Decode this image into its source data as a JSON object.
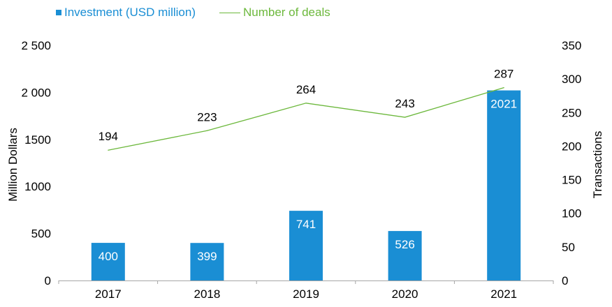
{
  "chart_data": {
    "type": "bar",
    "categories": [
      "2017",
      "2018",
      "2019",
      "2020",
      "2021"
    ],
    "series": [
      {
        "name": "Investment (USD million)",
        "type": "bar",
        "axis": "left",
        "values": [
          400,
          399,
          741,
          526,
          2021
        ],
        "color": "#1a8ed4"
      },
      {
        "name": "Number of deals",
        "type": "line",
        "axis": "right",
        "values": [
          194,
          223,
          264,
          243,
          287
        ],
        "color": "#6cb83c"
      }
    ],
    "ylabel": "Million Dollars",
    "ylabel_right": "Transactions",
    "ylim": [
      0,
      2500
    ],
    "ylim_right": [
      0,
      350
    ],
    "yticks": [
      "0",
      "500",
      "1000",
      "1500",
      "2 000",
      "2 500"
    ],
    "yticks_right": [
      "0",
      "50",
      "100",
      "150",
      "200",
      "250",
      "300",
      "350"
    ],
    "legend_position": "top-left",
    "grid": false,
    "bar_label_color": "#ffffff",
    "line_label_color": "#000000",
    "text_color": "#000000"
  }
}
